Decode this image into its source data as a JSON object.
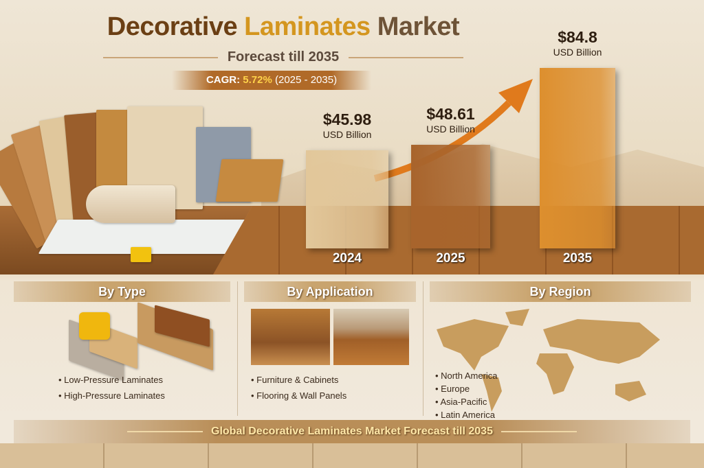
{
  "header": {
    "title_part1": "Decorative",
    "title_part2": "Laminates",
    "title_part3": "Market",
    "subtitle": "Forecast till 2035",
    "cagr_label": "CAGR:",
    "cagr_value": "5.72%",
    "cagr_range": "(2025 - 2035)"
  },
  "chart_data": {
    "type": "bar",
    "categories": [
      "2024",
      "2025",
      "2035"
    ],
    "values": [
      45.98,
      48.61,
      84.8
    ],
    "value_labels": [
      "$45.98",
      "$48.61",
      "$84.8"
    ],
    "unit": "USD Billion",
    "title": "Decorative Laminates Market",
    "colors": [
      "#e2c79a",
      "#a8642c",
      "#dd8f2e"
    ],
    "trend_arrow_color": "#e07a1c"
  },
  "panels": {
    "type": {
      "title": "By Type",
      "items": [
        "Low-Pressure Laminates",
        "High-Pressure Laminates"
      ]
    },
    "application": {
      "title": "By Application",
      "items": [
        "Furniture & Cabinets",
        "Flooring & Wall Panels"
      ]
    },
    "region": {
      "title": "By Region",
      "items": [
        "North America",
        "Europe",
        "Asia-Pacific",
        "Latin America"
      ]
    }
  },
  "footer": {
    "text": "Global Decorative Laminates Market Forecast till 2035"
  }
}
